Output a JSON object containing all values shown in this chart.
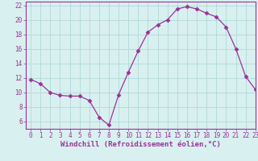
{
  "x": [
    0,
    1,
    2,
    3,
    4,
    5,
    6,
    7,
    8,
    9,
    10,
    11,
    12,
    13,
    14,
    15,
    16,
    17,
    18,
    19,
    20,
    21,
    22,
    23
  ],
  "y": [
    11.8,
    11.2,
    10.0,
    9.6,
    9.5,
    9.5,
    8.9,
    6.6,
    5.5,
    9.7,
    12.8,
    15.7,
    18.3,
    19.3,
    20.0,
    21.5,
    21.8,
    21.5,
    20.9,
    20.4,
    19.0,
    16.0,
    12.2,
    10.4
  ],
  "line_color": "#993399",
  "marker": "D",
  "marker_size": 2.5,
  "bg_color": "#d9f0f0",
  "grid_color": "#b0d8d8",
  "xlabel": "Windchill (Refroidissement éolien,°C)",
  "ylim": [
    5.0,
    22.5
  ],
  "xlim": [
    -0.5,
    23.0
  ],
  "yticks": [
    6,
    8,
    10,
    12,
    14,
    16,
    18,
    20,
    22
  ],
  "xticks": [
    0,
    1,
    2,
    3,
    4,
    5,
    6,
    7,
    8,
    9,
    10,
    11,
    12,
    13,
    14,
    15,
    16,
    17,
    18,
    19,
    20,
    21,
    22,
    23
  ],
  "tick_fontsize": 5.5,
  "xlabel_fontsize": 6.5,
  "axis_color": "#993399",
  "spine_color": "#993399"
}
